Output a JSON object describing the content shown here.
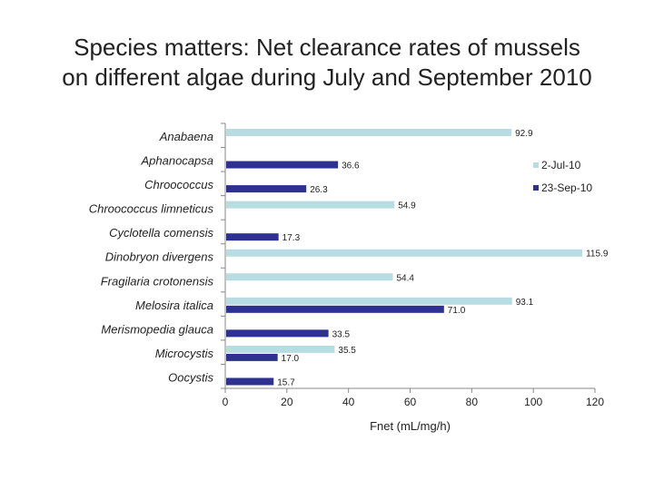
{
  "chart_data": {
    "type": "bar",
    "orientation": "horizontal",
    "title_line1": "Species matters: Net clearance rates of mussels",
    "title_line2": "on different algae during July and September 2010",
    "xlabel": "Fnet (mL/mg/h)",
    "xlim": [
      0,
      120
    ],
    "xticks": [
      0,
      20,
      40,
      60,
      80,
      100,
      120
    ],
    "legend_position": "right",
    "categories": [
      "Anabaena",
      "Aphanocapsa",
      "Chroococcus",
      "Chroococcus limneticus",
      "Cyclotella comensis",
      "Dinobryon divergens",
      "Fragilaria crotonensis",
      "Melosira italica",
      "Merismopedia glauca",
      "Microcystis",
      "Oocystis"
    ],
    "series": [
      {
        "name": "2-Jul-10",
        "color": "#b7dde3",
        "values": [
          92.9,
          null,
          null,
          54.9,
          null,
          115.9,
          54.4,
          93.1,
          null,
          35.5,
          null
        ],
        "labels": [
          "92.9",
          "",
          "",
          "54.9",
          "",
          "115.9",
          "54.4",
          "93.1",
          "",
          "35.5",
          ""
        ]
      },
      {
        "name": "23-Sep-10",
        "color": "#2e3192",
        "values": [
          null,
          36.6,
          26.3,
          null,
          17.3,
          null,
          null,
          71.0,
          33.5,
          17.0,
          15.7
        ],
        "labels": [
          "",
          "36.6",
          "26.3",
          "",
          "17.3",
          "",
          "",
          "71.0",
          "33.5",
          "17.0",
          "15.7"
        ]
      }
    ]
  }
}
